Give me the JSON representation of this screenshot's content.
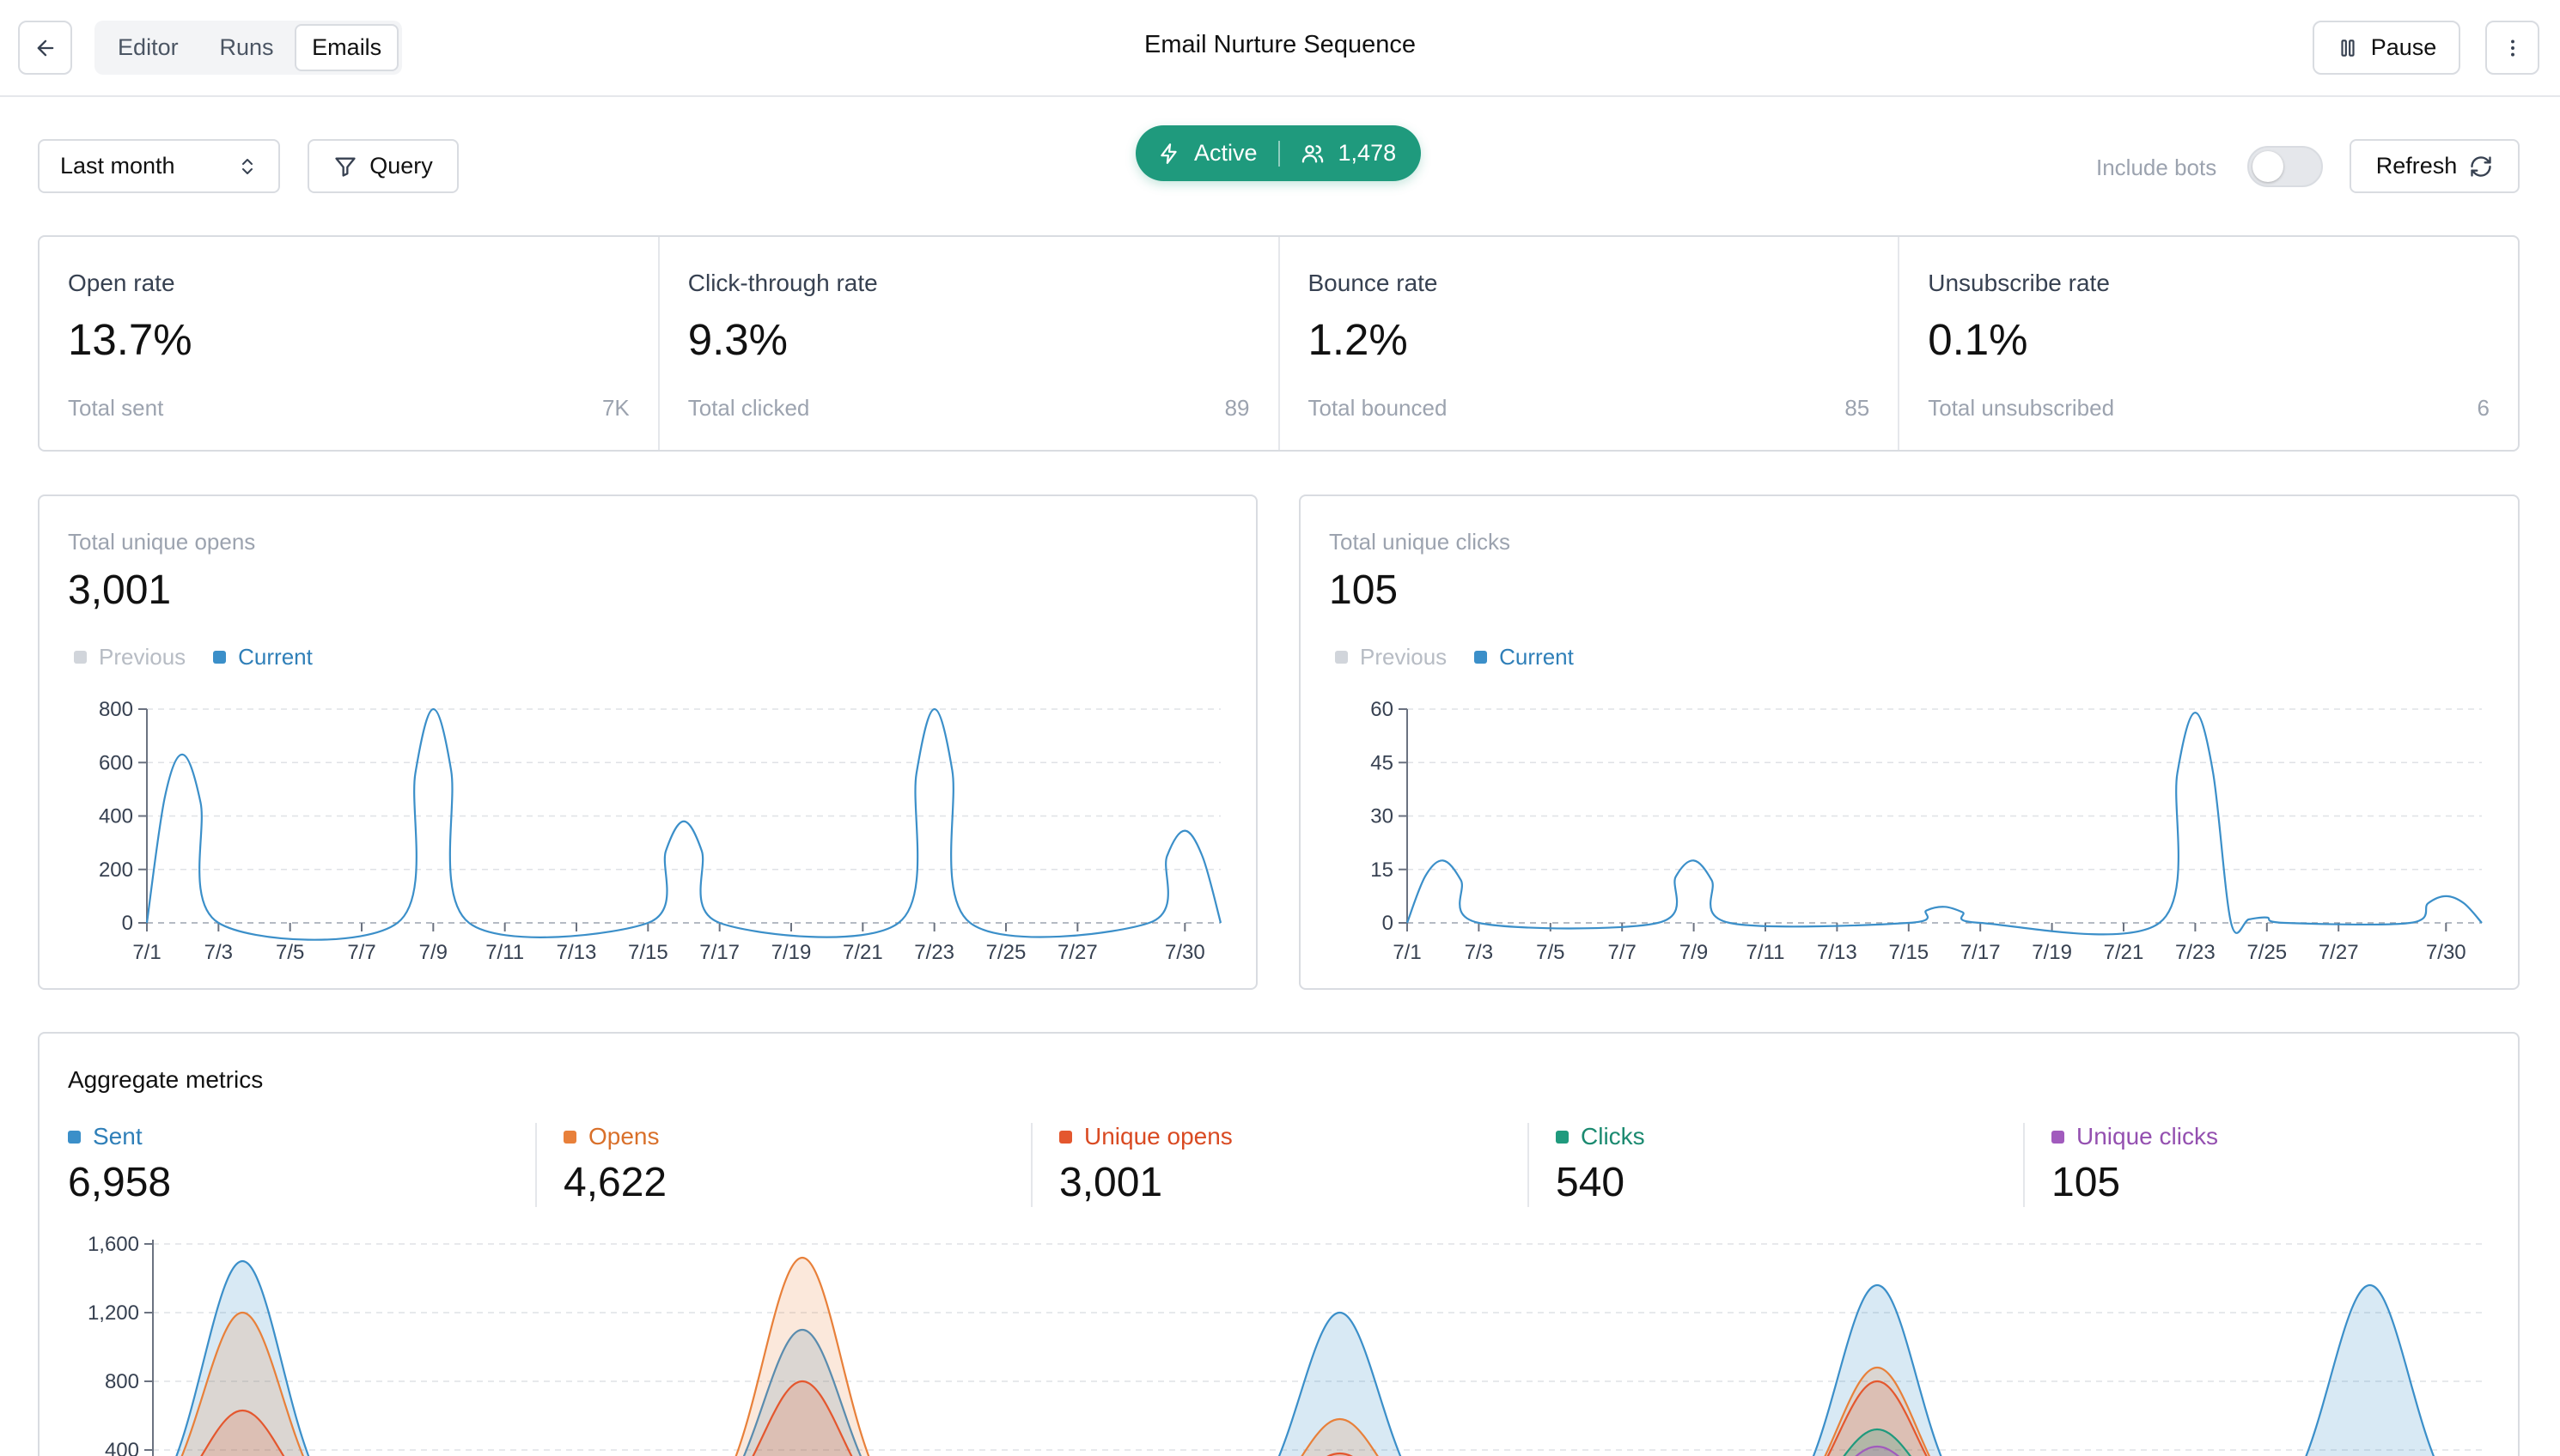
{
  "header": {
    "title": "Email Nurture Sequence",
    "tabs": [
      {
        "label": "Editor",
        "active": false
      },
      {
        "label": "Runs",
        "active": false
      },
      {
        "label": "Emails",
        "active": true
      }
    ],
    "pause_label": "Pause",
    "back_icon": "arrow-left-icon",
    "more_icon": "more-vertical-icon",
    "pause_icon": "pause-icon"
  },
  "filters": {
    "range": "Last month",
    "query_label": "Query",
    "status": "Active",
    "audience_count": "1,478",
    "include_bots_label": "Include bots",
    "include_bots": false,
    "refresh_label": "Refresh"
  },
  "kpis": [
    {
      "label": "Open rate",
      "value": "13.7%",
      "foot_label": "Total sent",
      "foot_value": "7K"
    },
    {
      "label": "Click-through rate",
      "value": "9.3%",
      "foot_label": "Total clicked",
      "foot_value": "89"
    },
    {
      "label": "Bounce rate",
      "value": "1.2%",
      "foot_label": "Total bounced",
      "foot_value": "85"
    },
    {
      "label": "Unsubscribe rate",
      "value": "0.1%",
      "foot_label": "Total unsubscribed",
      "foot_value": "6"
    }
  ],
  "colors": {
    "accent": "#1f9a7d",
    "current": "#3b8fc9",
    "previous": "#d1d5db",
    "sent": "#3b8fc9",
    "opens": "#e8803a",
    "unique_opens": "#e4572e",
    "clicks": "#1f9a7d",
    "unique_clicks": "#a15bbd"
  },
  "chart_data": [
    {
      "type": "line",
      "label": "Total unique opens",
      "total": "3,001",
      "legend": [
        "Previous",
        "Current"
      ],
      "x_ticks": [
        "7/1",
        "7/3",
        "7/5",
        "7/7",
        "7/9",
        "7/11",
        "7/13",
        "7/15",
        "7/17",
        "7/19",
        "7/21",
        "7/23",
        "7/25",
        "7/27",
        "7/30"
      ],
      "y_ticks": [
        "0",
        "200",
        "400",
        "600",
        "800"
      ],
      "ylim": [
        0,
        800
      ],
      "grid": true,
      "series": [
        {
          "name": "Current",
          "x": [
            0,
            0.5,
            1,
            1.5,
            2,
            7,
            7.5,
            8,
            8.5,
            9,
            14,
            14.5,
            15,
            15.5,
            16,
            21,
            21.5,
            22,
            22.5,
            23,
            28,
            28.5,
            29,
            29.5,
            30
          ],
          "y": [
            0,
            470,
            630,
            450,
            0,
            0,
            560,
            800,
            570,
            0,
            0,
            270,
            380,
            270,
            0,
            0,
            560,
            800,
            570,
            0,
            0,
            250,
            345,
            245,
            0
          ]
        }
      ]
    },
    {
      "type": "line",
      "label": "Total unique clicks",
      "total": "105",
      "legend": [
        "Previous",
        "Current"
      ],
      "x_ticks": [
        "7/1",
        "7/3",
        "7/5",
        "7/7",
        "7/9",
        "7/11",
        "7/13",
        "7/15",
        "7/17",
        "7/19",
        "7/21",
        "7/23",
        "7/25",
        "7/27",
        "7/30"
      ],
      "y_ticks": [
        "0",
        "15",
        "30",
        "45",
        "60"
      ],
      "ylim": [
        0,
        60
      ],
      "grid": true,
      "series": [
        {
          "name": "Current",
          "x": [
            0,
            0.5,
            1,
            1.5,
            2,
            7,
            7.5,
            8,
            8.5,
            9,
            14,
            14.5,
            15,
            15.5,
            16,
            21,
            21.5,
            22,
            22.5,
            23,
            23.5,
            24,
            24.5,
            28,
            28.5,
            29,
            29.5,
            30
          ],
          "y": [
            0,
            13,
            17.5,
            12,
            0,
            0,
            13,
            17.5,
            12,
            0,
            0,
            3.5,
            4.5,
            3,
            0,
            0,
            42,
            59,
            42,
            0,
            1,
            1.5,
            0,
            0,
            5.5,
            7.5,
            5.5,
            0
          ]
        }
      ]
    },
    {
      "type": "area",
      "label": "Aggregate metrics",
      "y_ticks": [
        "400",
        "800",
        "1,200",
        "1,600"
      ],
      "ylim": [
        0,
        1600
      ],
      "grid": true,
      "peaks_x": [
        2,
        14.5,
        26.5,
        38.5,
        49.5
      ],
      "series": [
        {
          "name": "Sent",
          "total": "6,958",
          "peaks": [
            1500,
            1100,
            1200,
            1360,
            1360
          ]
        },
        {
          "name": "Opens",
          "total": "4,622",
          "peaks": [
            1200,
            1520,
            580,
            880,
            20
          ]
        },
        {
          "name": "Unique opens",
          "total": "3,001",
          "peaks": [
            630,
            800,
            380,
            800,
            20
          ]
        },
        {
          "name": "Clicks",
          "total": "540",
          "peaks": [
            0,
            0,
            0,
            520,
            0
          ]
        },
        {
          "name": "Unique clicks",
          "total": "105",
          "peaks": [
            0,
            0,
            0,
            420,
            0
          ]
        }
      ]
    }
  ]
}
